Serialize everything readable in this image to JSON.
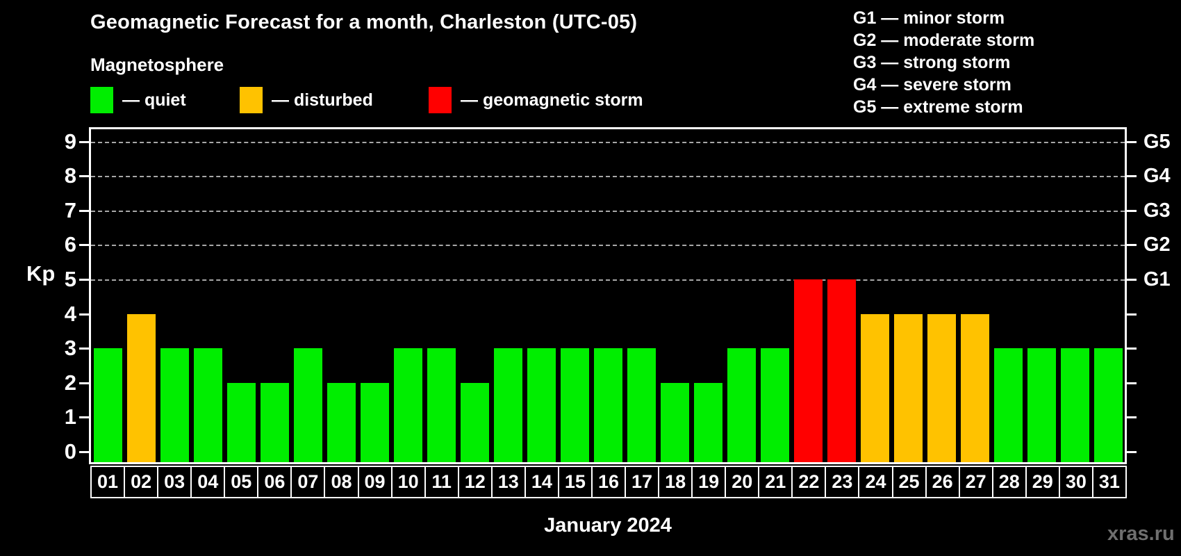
{
  "title": "Geomagnetic Forecast for a month, Charleston (UTC-05)",
  "subtitle": "Magnetosphere",
  "legend": {
    "items": [
      {
        "key": "quiet",
        "label": "— quiet",
        "color": "#00ee00"
      },
      {
        "key": "disturbed",
        "label": "— disturbed",
        "color": "#ffc200"
      },
      {
        "key": "storm",
        "label": "— geomagnetic storm",
        "color": "#ff0000"
      }
    ]
  },
  "storm_scale_legend": [
    "G1 — minor storm",
    "G2 — moderate storm",
    "G3 — strong storm",
    "G4 — severe storm",
    "G5 — extreme storm"
  ],
  "axis": {
    "left_label": "Kp",
    "left_tick_labels": [
      "0",
      "1",
      "2",
      "3",
      "4",
      "5",
      "6",
      "7",
      "8",
      "9"
    ],
    "right_labels": [
      {
        "kp": 5,
        "label": "G1"
      },
      {
        "kp": 6,
        "label": "G2"
      },
      {
        "kp": 7,
        "label": "G3"
      },
      {
        "kp": 8,
        "label": "G4"
      },
      {
        "kp": 9,
        "label": "G5"
      }
    ]
  },
  "footer": {
    "caption": "January 2024",
    "watermark": "xras.ru"
  },
  "colors": {
    "background": "#000000",
    "axis": "#ffffff",
    "grid": "#a8a8a8",
    "quiet": "#00ee00",
    "disturbed": "#ffc200",
    "storm": "#ff0000",
    "watermark": "#6f6f6f"
  },
  "chart_data": {
    "type": "bar",
    "title": "Geomagnetic Forecast for a month, Charleston (UTC-05)",
    "xlabel": "January 2024",
    "ylabel": "Kp",
    "ylim": [
      0,
      9
    ],
    "grid": "dashed horizontal at Kp 5-9 (G1-G5 levels)",
    "legend_position": "top-left (quiet/disturbed/storm), top-right (G-scale)",
    "categories": [
      "01",
      "02",
      "03",
      "04",
      "05",
      "06",
      "07",
      "08",
      "09",
      "10",
      "11",
      "12",
      "13",
      "14",
      "15",
      "16",
      "17",
      "18",
      "19",
      "20",
      "21",
      "22",
      "23",
      "24",
      "25",
      "26",
      "27",
      "28",
      "29",
      "30",
      "31"
    ],
    "values": [
      3,
      4,
      3,
      3,
      2,
      2,
      3,
      2,
      2,
      3,
      3,
      2,
      3,
      3,
      3,
      3,
      3,
      2,
      2,
      3,
      3,
      5,
      5,
      4,
      4,
      4,
      4,
      3,
      3,
      3,
      3
    ],
    "thresholds": {
      "disturbed_min": 4,
      "storm_min": 5
    }
  }
}
